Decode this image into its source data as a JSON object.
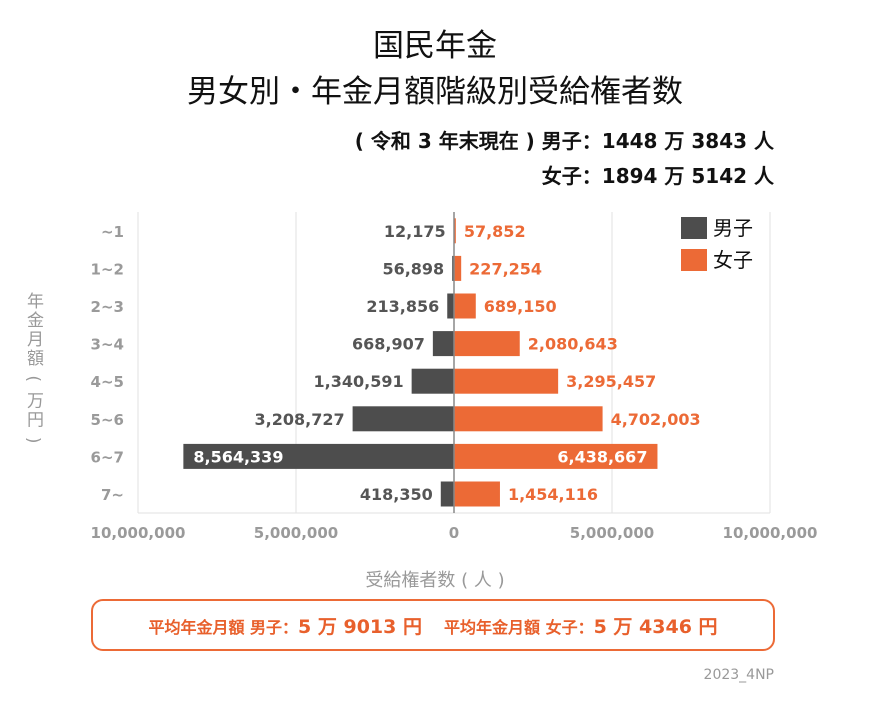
{
  "title_line1": "国民年金",
  "title_line2": "男女別・年金月額階級別受給権者数",
  "subtitle_line1": "( 令和 3 年末現在 ) 男子：1448 万 3843 人",
  "subtitle_line2": "女子：1894 万 5142 人",
  "average_label_male": "平均年金月額 男子：",
  "average_value_male": "5 万 9013 円",
  "average_label_female": "平均年金月額 女子：",
  "average_value_female": "5 万 4346 円",
  "credit": "2023_4NP",
  "chart_data": {
    "type": "bar",
    "orientation": "horizontal",
    "layout": "population-pyramid",
    "ylabel": "年金月額 ( 万円 )",
    "xlabel": "受給権者数 ( 人 )",
    "categories": [
      "~1",
      "1~2",
      "2~3",
      "3~4",
      "4~5",
      "5~6",
      "6~7",
      "7~"
    ],
    "series": [
      {
        "name": "男子",
        "color": "#4d4d4d",
        "direction": "left",
        "values": [
          12175,
          56898,
          213856,
          668907,
          1340591,
          3208727,
          8564339,
          418350
        ],
        "labels": [
          "12,175",
          "56,898",
          "213,856",
          "668,907",
          "1,340,591",
          "3,208,727",
          "8,564,339",
          "418,350"
        ]
      },
      {
        "name": "女子",
        "color": "#ec6a36",
        "direction": "right",
        "values": [
          57852,
          227254,
          689150,
          2080643,
          3295457,
          4702003,
          6438667,
          1454116
        ],
        "labels": [
          "57,852",
          "227,254",
          "689,150",
          "2,080,643",
          "3,295,457",
          "4,702,003",
          "6,438,667",
          "1,454,116"
        ]
      }
    ],
    "xlim": [
      -10000000,
      10000000
    ],
    "xticks": [
      -10000000,
      -5000000,
      0,
      5000000,
      10000000
    ],
    "xtick_labels": [
      "10,000,000",
      "5,000,000",
      "0",
      "5,000,000",
      "10,000,000"
    ],
    "grid": true,
    "legend": "top-right"
  }
}
